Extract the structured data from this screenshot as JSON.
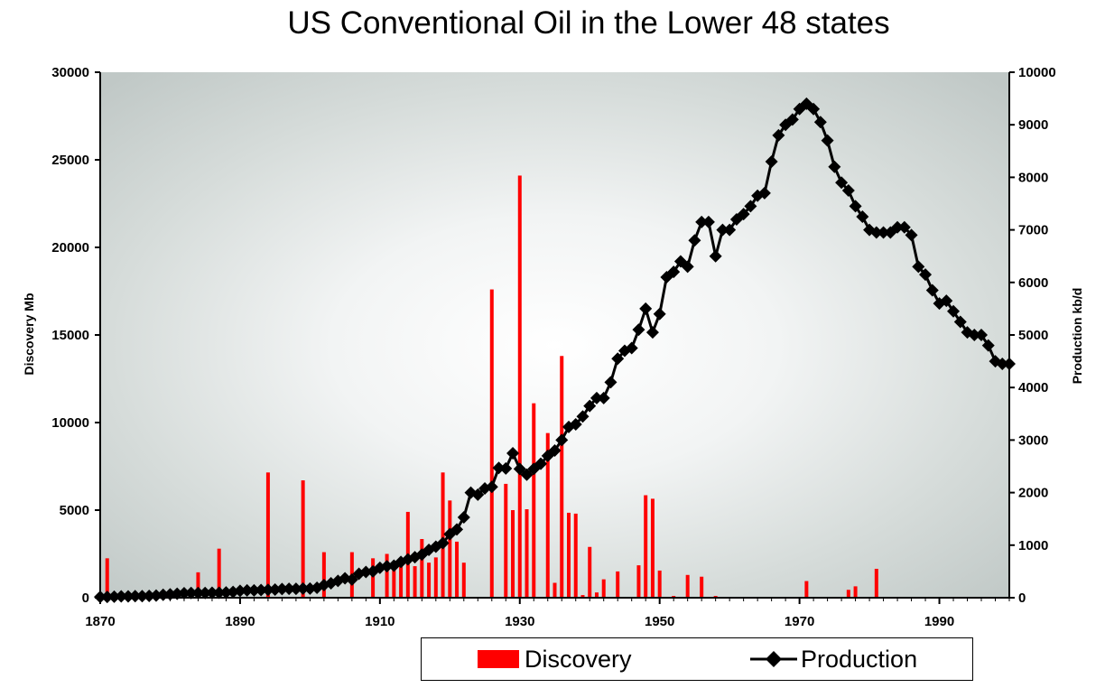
{
  "chart_data": {
    "type": "bar+line",
    "title": "US Conventional Oil in the Lower 48 states",
    "ylabel_left": "Discovery Mb",
    "ylabel_right": "Production kb/d",
    "xlim": [
      1870,
      2000
    ],
    "ylim_left": [
      0,
      30000
    ],
    "ylim_right": [
      0,
      10000
    ],
    "x_ticks": [
      "1870",
      "1890",
      "1910",
      "1930",
      "1950",
      "1970",
      "1990"
    ],
    "y_left_ticks": [
      "0",
      "5000",
      "10000",
      "15000",
      "20000",
      "25000",
      "30000"
    ],
    "y_right_ticks": [
      "0",
      "1000",
      "2000",
      "3000",
      "4000",
      "5000",
      "6000",
      "7000",
      "8000",
      "9000",
      "10000"
    ],
    "grid": false,
    "legend_position": "bottom",
    "series": [
      {
        "name": "Discovery",
        "type": "bar",
        "axis": "left",
        "color": "#ff0000",
        "points": [
          [
            1871,
            2250
          ],
          [
            1884,
            1450
          ],
          [
            1887,
            2800
          ],
          [
            1894,
            7150
          ],
          [
            1899,
            6700
          ],
          [
            1902,
            2600
          ],
          [
            1906,
            2600
          ],
          [
            1909,
            2250
          ],
          [
            1911,
            2500
          ],
          [
            1912,
            2000
          ],
          [
            1913,
            1900
          ],
          [
            1914,
            4900
          ],
          [
            1915,
            1800
          ],
          [
            1916,
            3350
          ],
          [
            1917,
            2000
          ],
          [
            1918,
            2300
          ],
          [
            1919,
            7150
          ],
          [
            1920,
            5550
          ],
          [
            1921,
            3200
          ],
          [
            1922,
            2000
          ],
          [
            1926,
            17600
          ],
          [
            1928,
            6500
          ],
          [
            1929,
            5000
          ],
          [
            1930,
            24100
          ],
          [
            1931,
            5050
          ],
          [
            1932,
            11100
          ],
          [
            1934,
            9400
          ],
          [
            1935,
            850
          ],
          [
            1936,
            13800
          ],
          [
            1937,
            4850
          ],
          [
            1938,
            4800
          ],
          [
            1939,
            150
          ],
          [
            1940,
            2900
          ],
          [
            1941,
            300
          ],
          [
            1942,
            1050
          ],
          [
            1944,
            1500
          ],
          [
            1947,
            1850
          ],
          [
            1948,
            5850
          ],
          [
            1949,
            5650
          ],
          [
            1950,
            1550
          ],
          [
            1952,
            100
          ],
          [
            1954,
            1300
          ],
          [
            1956,
            1200
          ],
          [
            1958,
            100
          ],
          [
            1971,
            950
          ],
          [
            1977,
            450
          ],
          [
            1978,
            650
          ],
          [
            1981,
            1650
          ]
        ]
      },
      {
        "name": "Production",
        "type": "line",
        "axis": "right",
        "color": "#000000",
        "points": [
          [
            1870,
            15
          ],
          [
            1871,
            15
          ],
          [
            1872,
            20
          ],
          [
            1873,
            25
          ],
          [
            1874,
            25
          ],
          [
            1875,
            30
          ],
          [
            1876,
            30
          ],
          [
            1877,
            35
          ],
          [
            1878,
            40
          ],
          [
            1879,
            55
          ],
          [
            1880,
            65
          ],
          [
            1881,
            75
          ],
          [
            1882,
            85
          ],
          [
            1883,
            90
          ],
          [
            1884,
            90
          ],
          [
            1885,
            90
          ],
          [
            1886,
            95
          ],
          [
            1887,
            95
          ],
          [
            1888,
            100
          ],
          [
            1889,
            110
          ],
          [
            1890,
            130
          ],
          [
            1891,
            140
          ],
          [
            1892,
            140
          ],
          [
            1893,
            145
          ],
          [
            1894,
            150
          ],
          [
            1895,
            155
          ],
          [
            1896,
            165
          ],
          [
            1897,
            170
          ],
          [
            1898,
            170
          ],
          [
            1899,
            175
          ],
          [
            1900,
            175
          ],
          [
            1901,
            190
          ],
          [
            1902,
            240
          ],
          [
            1903,
            275
          ],
          [
            1904,
            320
          ],
          [
            1905,
            370
          ],
          [
            1906,
            345
          ],
          [
            1907,
            455
          ],
          [
            1908,
            490
          ],
          [
            1909,
            500
          ],
          [
            1910,
            570
          ],
          [
            1911,
            600
          ],
          [
            1912,
            610
          ],
          [
            1913,
            680
          ],
          [
            1914,
            730
          ],
          [
            1915,
            770
          ],
          [
            1916,
            820
          ],
          [
            1917,
            910
          ],
          [
            1918,
            970
          ],
          [
            1919,
            1040
          ],
          [
            1920,
            1210
          ],
          [
            1921,
            1300
          ],
          [
            1922,
            1530
          ],
          [
            1923,
            2000
          ],
          [
            1924,
            1960
          ],
          [
            1925,
            2080
          ],
          [
            1926,
            2110
          ],
          [
            1927,
            2470
          ],
          [
            1928,
            2460
          ],
          [
            1929,
            2750
          ],
          [
            1930,
            2450
          ],
          [
            1931,
            2340
          ],
          [
            1932,
            2450
          ],
          [
            1933,
            2550
          ],
          [
            1934,
            2700
          ],
          [
            1935,
            2800
          ],
          [
            1936,
            3000
          ],
          [
            1937,
            3250
          ],
          [
            1938,
            3300
          ],
          [
            1939,
            3450
          ],
          [
            1940,
            3650
          ],
          [
            1941,
            3800
          ],
          [
            1942,
            3800
          ],
          [
            1943,
            4100
          ],
          [
            1944,
            4550
          ],
          [
            1945,
            4700
          ],
          [
            1946,
            4750
          ],
          [
            1947,
            5100
          ],
          [
            1948,
            5500
          ],
          [
            1949,
            5050
          ],
          [
            1950,
            5400
          ],
          [
            1951,
            6100
          ],
          [
            1952,
            6200
          ],
          [
            1953,
            6400
          ],
          [
            1954,
            6300
          ],
          [
            1955,
            6800
          ],
          [
            1956,
            7150
          ],
          [
            1957,
            7150
          ],
          [
            1958,
            6500
          ],
          [
            1959,
            7000
          ],
          [
            1960,
            7000
          ],
          [
            1961,
            7200
          ],
          [
            1962,
            7300
          ],
          [
            1963,
            7450
          ],
          [
            1964,
            7650
          ],
          [
            1965,
            7700
          ],
          [
            1966,
            8300
          ],
          [
            1967,
            8800
          ],
          [
            1968,
            9000
          ],
          [
            1969,
            9100
          ],
          [
            1970,
            9300
          ],
          [
            1971,
            9400
          ],
          [
            1972,
            9300
          ],
          [
            1973,
            9050
          ],
          [
            1974,
            8700
          ],
          [
            1975,
            8200
          ],
          [
            1976,
            7900
          ],
          [
            1977,
            7750
          ],
          [
            1978,
            7450
          ],
          [
            1979,
            7250
          ],
          [
            1980,
            7000
          ],
          [
            1981,
            6950
          ],
          [
            1982,
            6950
          ],
          [
            1983,
            6950
          ],
          [
            1984,
            7050
          ],
          [
            1985,
            7050
          ],
          [
            1986,
            6900
          ],
          [
            1987,
            6300
          ],
          [
            1988,
            6150
          ],
          [
            1989,
            5850
          ],
          [
            1990,
            5600
          ],
          [
            1991,
            5650
          ],
          [
            1992,
            5450
          ],
          [
            1993,
            5250
          ],
          [
            1994,
            5050
          ],
          [
            1995,
            5000
          ],
          [
            1996,
            5000
          ],
          [
            1997,
            4800
          ],
          [
            1998,
            4500
          ],
          [
            1999,
            4450
          ],
          [
            2000,
            4450
          ]
        ]
      }
    ]
  }
}
